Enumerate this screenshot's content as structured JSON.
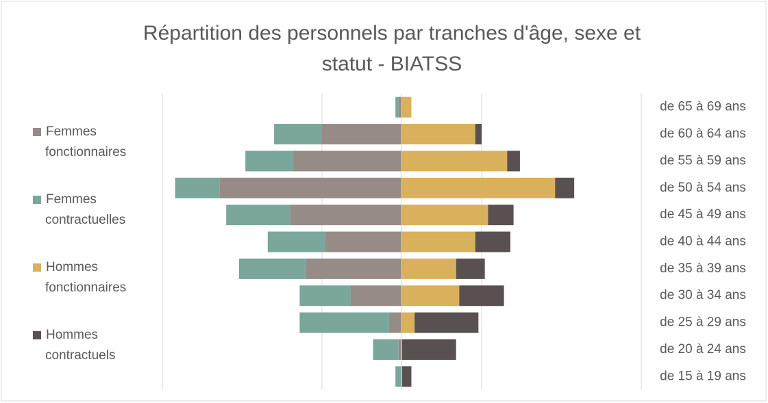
{
  "chart_data": {
    "type": "bar",
    "orientation": "horizontal",
    "stacked": true,
    "title_lines": [
      "Répartition des personnels par tranches d'âge, sexe et",
      "statut - BIATSS"
    ],
    "categories": [
      "de 65 à 69 ans",
      "de 60 à 64 ans",
      "de 55 à 59 ans",
      "de 50 à 54 ans",
      "de 45 à 49 ans",
      "de 40 à 44 ans",
      "de 35 à 39 ans",
      "de 30 à 34 ans",
      "de 25 à 29 ans",
      "de 20 à 24 ans",
      "de 15 à 19 ans"
    ],
    "series": [
      {
        "name_lines": [
          "Femmes",
          "fonctionnaires"
        ],
        "color": "#968b87",
        "values": [
          -2,
          -50,
          -68,
          -114,
          -70,
          -48,
          -60,
          -32,
          -8,
          -2,
          0
        ]
      },
      {
        "name_lines": [
          "Femmes",
          "contractuelles"
        ],
        "color": "#7aa69c",
        "values": [
          -2,
          -30,
          -30,
          -28,
          -40,
          -36,
          -42,
          -32,
          -56,
          -16,
          -4
        ]
      },
      {
        "name_lines": [
          "Hommes",
          "fonctionnaires"
        ],
        "color": "#d9b15c",
        "values": [
          6,
          46,
          66,
          96,
          54,
          46,
          34,
          36,
          8,
          0,
          0
        ]
      },
      {
        "name_lines": [
          "Hommes",
          "contractuels"
        ],
        "color": "#595052",
        "values": [
          0,
          4,
          8,
          12,
          16,
          22,
          18,
          28,
          40,
          34,
          6
        ]
      }
    ],
    "xlim": [
      -150,
      150
    ],
    "xticks": [
      -150,
      -50,
      50,
      150
    ],
    "grid": true
  }
}
